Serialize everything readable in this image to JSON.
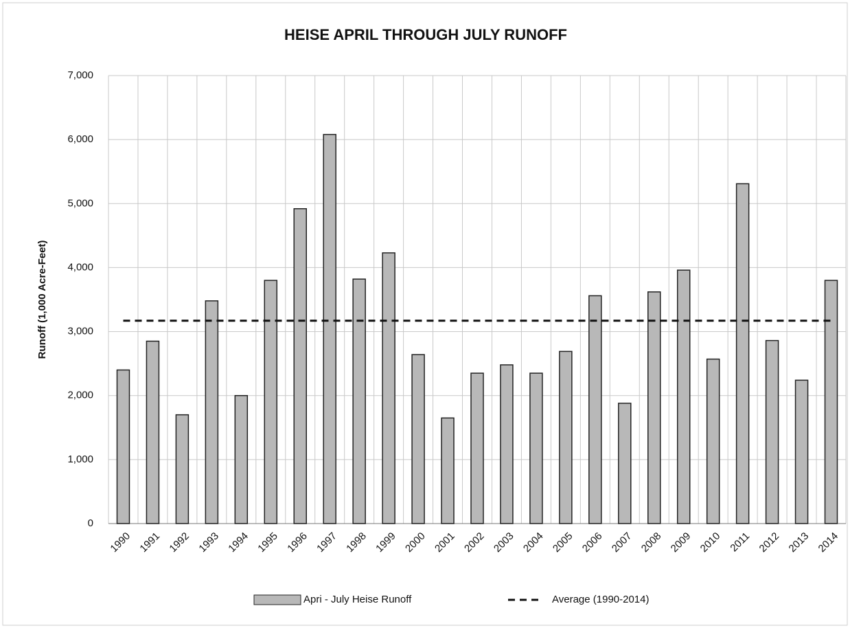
{
  "chart_data": {
    "type": "bar",
    "title": "HEISE APRIL THROUGH JULY RUNOFF",
    "ylabel": "Runoff  (1,000  Acre-Feet)",
    "categories": [
      "1990",
      "1991",
      "1992",
      "1993",
      "1994",
      "1995",
      "1996",
      "1997",
      "1998",
      "1999",
      "2000",
      "2001",
      "2002",
      "2003",
      "2004",
      "2005",
      "2006",
      "2007",
      "2008",
      "2009",
      "2010",
      "2011",
      "2012",
      "2013",
      "2014"
    ],
    "series": [
      {
        "name": "Apri - July Heise Runoff",
        "type": "bar",
        "color": "#b8b8b8",
        "values": [
          2400,
          2850,
          1700,
          3480,
          2000,
          3800,
          4920,
          6080,
          3820,
          4230,
          2640,
          1650,
          2350,
          2480,
          2350,
          2690,
          3560,
          1880,
          3620,
          3960,
          2570,
          5310,
          2860,
          2240,
          3800
        ]
      },
      {
        "name": "Average (1990-2014)",
        "type": "line",
        "color": "#111111",
        "values": [
          3170,
          3170,
          3170,
          3170,
          3170,
          3170,
          3170,
          3170,
          3170,
          3170,
          3170,
          3170,
          3170,
          3170,
          3170,
          3170,
          3170,
          3170,
          3170,
          3170,
          3170,
          3170,
          3170,
          3170,
          3170
        ]
      }
    ],
    "ylim": [
      0,
      7000
    ],
    "yticks": [
      0,
      {
        "value": 1000,
        "label": "1,000"
      },
      {
        "value": 2000,
        "label": "2,000"
      },
      {
        "value": 3000,
        "label": "3,000"
      },
      {
        "value": 4000,
        "label": "4,000"
      },
      {
        "value": 5000,
        "label": "5,000"
      },
      {
        "value": 6000,
        "label": "6,000"
      },
      {
        "value": 7000,
        "label": "7,000"
      }
    ],
    "grid": true,
    "legend": "bottom"
  }
}
